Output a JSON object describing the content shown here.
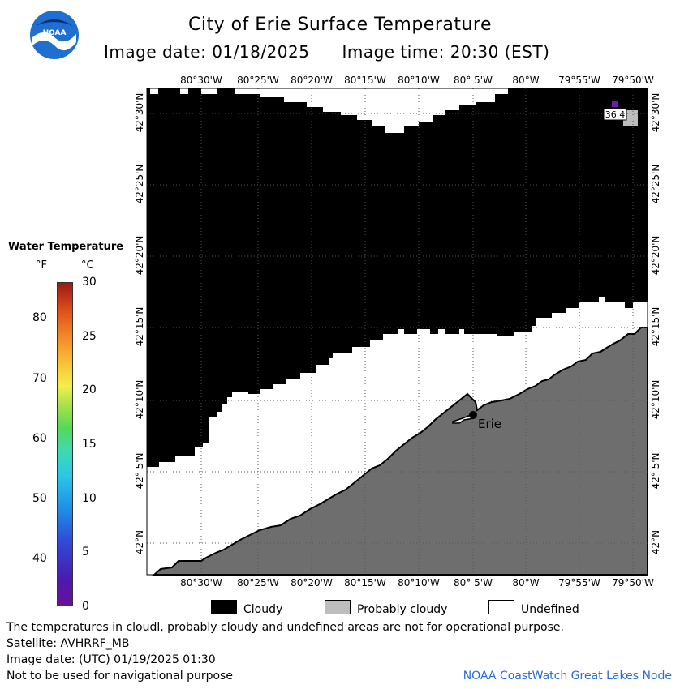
{
  "title": "City of Erie Surface Temperature",
  "image_date_label": "Image date: 01/18/2025",
  "image_time_label": "Image time: 20:30 (EST)",
  "logo_text": "NOAA",
  "legend": {
    "title": "Water Temperature",
    "unit_f": "°F",
    "unit_c": "°C",
    "f_ticks": [
      "80",
      "70",
      "60",
      "50",
      "40"
    ],
    "c_ticks": [
      "30",
      "25",
      "20",
      "15",
      "10",
      "5",
      "0"
    ],
    "range_c": [
      0,
      30
    ]
  },
  "map": {
    "lon_labels": [
      "80°30'W",
      "80°25'W",
      "80°20'W",
      "80°15'W",
      "80°10'W",
      "80° 5'W",
      "80°W",
      "79°55'W",
      "79°50'W"
    ],
    "lat_labels": [
      "42°30'N",
      "42°25'N",
      "42°20'N",
      "42°15'N",
      "42°10'N",
      "42° 5'N",
      "42°N"
    ],
    "city_label": "Erie",
    "temp_marker": "36.4",
    "colors": {
      "cloudy": "#000000",
      "land": "#6e6e6e",
      "undefined": "#ffffff",
      "probably_cloudy": "#bdbdbd"
    }
  },
  "legend_boxes": [
    {
      "label": "Cloudy",
      "color": "#000000"
    },
    {
      "label": "Probably cloudy",
      "color": "#bdbdbd"
    },
    {
      "label": "Undefined",
      "color": "#ffffff"
    }
  ],
  "footer": {
    "line1": "The temperatures in cloudl, probably cloudy and undefined areas are not for operational purpose.",
    "line2": "Satellite: AVHRRF_MB",
    "line3": "Image date: (UTC) 01/19/2025  01:30",
    "line4": "Not to be used for navigational purpose",
    "node": "NOAA CoastWatch Great Lakes Node"
  }
}
